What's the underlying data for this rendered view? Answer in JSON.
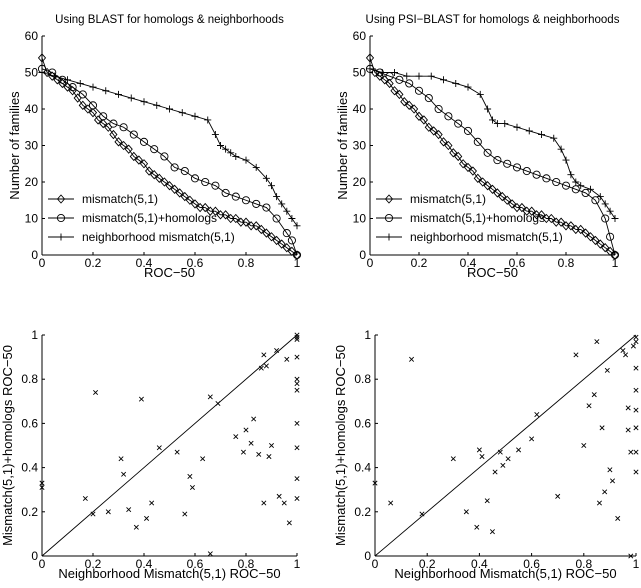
{
  "chart_data": [
    {
      "type": "line",
      "title": "Using BLAST for homologs & neighborhoods",
      "xlabel": "ROC−50",
      "ylabel": "Number of families",
      "xlim": [
        0,
        1
      ],
      "ylim": [
        0,
        60
      ],
      "xticks": [
        "0",
        "0.2",
        "0.4",
        "0.6",
        "0.8",
        "1"
      ],
      "yticks": [
        "0",
        "10",
        "20",
        "30",
        "40",
        "50",
        "60"
      ],
      "legend": "bottom-left",
      "series": [
        {
          "name": "mismatch(5,1)",
          "marker": "diamond",
          "x": [
            0,
            0.02,
            0.04,
            0.06,
            0.08,
            0.1,
            0.12,
            0.14,
            0.16,
            0.18,
            0.2,
            0.22,
            0.24,
            0.26,
            0.28,
            0.3,
            0.32,
            0.34,
            0.36,
            0.38,
            0.4,
            0.42,
            0.44,
            0.46,
            0.48,
            0.5,
            0.52,
            0.54,
            0.56,
            0.58,
            0.6,
            0.62,
            0.64,
            0.66,
            0.68,
            0.7,
            0.72,
            0.74,
            0.76,
            0.78,
            0.8,
            0.82,
            0.84,
            0.86,
            0.88,
            0.9,
            0.92,
            0.94,
            0.96,
            0.98,
            1.0
          ],
          "y": [
            54,
            50,
            49,
            48,
            47,
            46,
            45,
            43,
            41,
            40,
            39,
            37,
            36,
            35,
            33,
            31,
            30,
            29,
            27,
            26,
            25,
            23,
            22,
            21,
            20,
            19,
            18,
            17,
            16,
            15,
            14,
            13,
            13,
            12,
            12,
            11,
            11,
            10,
            10,
            9,
            9,
            8,
            8,
            7,
            6,
            5,
            4,
            3,
            2,
            1,
            0
          ]
        },
        {
          "name": "mismatch(5,1)+homologs",
          "marker": "circle",
          "x": [
            0,
            0.04,
            0.08,
            0.12,
            0.16,
            0.2,
            0.24,
            0.28,
            0.32,
            0.36,
            0.4,
            0.44,
            0.48,
            0.52,
            0.56,
            0.6,
            0.64,
            0.68,
            0.72,
            0.76,
            0.8,
            0.84,
            0.88,
            0.92,
            0.96,
            0.98,
            1.0
          ],
          "y": [
            51,
            50,
            48,
            46,
            44,
            41,
            38,
            36,
            35,
            33,
            31,
            29,
            27,
            24,
            23,
            21,
            20,
            19,
            17,
            16,
            15,
            14,
            13,
            10,
            6,
            4,
            0
          ]
        },
        {
          "name": "neighborhood mismatch(5,1)",
          "marker": "plus",
          "x": [
            0,
            0.05,
            0.1,
            0.15,
            0.2,
            0.25,
            0.3,
            0.35,
            0.4,
            0.45,
            0.5,
            0.55,
            0.6,
            0.65,
            0.68,
            0.7,
            0.72,
            0.74,
            0.76,
            0.8,
            0.84,
            0.88,
            0.9,
            0.92,
            0.94,
            0.96,
            0.98,
            1.0
          ],
          "y": [
            50,
            49,
            48,
            47,
            46,
            45,
            44,
            43,
            42,
            41,
            40,
            39,
            38,
            37,
            33,
            30,
            29,
            28,
            27,
            26,
            24,
            21,
            19,
            16,
            14,
            12,
            10,
            8
          ]
        }
      ]
    },
    {
      "type": "line",
      "title": "Using PSI−BLAST for homologs & neighborhoods",
      "xlabel": "ROC−50",
      "ylabel": "Number of families",
      "xlim": [
        0,
        1
      ],
      "ylim": [
        0,
        60
      ],
      "xticks": [
        "0",
        "0.2",
        "0.4",
        "0.6",
        "0.8",
        "1"
      ],
      "yticks": [
        "0",
        "10",
        "20",
        "30",
        "40",
        "50",
        "60"
      ],
      "legend": "bottom-left",
      "series": [
        {
          "name": "mismatch(5,1)",
          "marker": "diamond",
          "x": [
            0,
            0.02,
            0.04,
            0.06,
            0.08,
            0.1,
            0.12,
            0.14,
            0.16,
            0.18,
            0.2,
            0.22,
            0.24,
            0.26,
            0.28,
            0.3,
            0.32,
            0.34,
            0.36,
            0.38,
            0.4,
            0.42,
            0.44,
            0.46,
            0.48,
            0.5,
            0.52,
            0.54,
            0.56,
            0.58,
            0.6,
            0.62,
            0.64,
            0.66,
            0.68,
            0.7,
            0.72,
            0.74,
            0.76,
            0.78,
            0.8,
            0.82,
            0.84,
            0.86,
            0.88,
            0.9,
            0.92,
            0.94,
            0.96,
            0.98,
            1.0
          ],
          "y": [
            54,
            50,
            49,
            48,
            47,
            45,
            44,
            42,
            41,
            40,
            38,
            37,
            35,
            34,
            33,
            31,
            30,
            28,
            27,
            25,
            24,
            23,
            21,
            20,
            19,
            18,
            17,
            16,
            15,
            14,
            13,
            13,
            12,
            12,
            11,
            11,
            10,
            10,
            9,
            9,
            8,
            8,
            7,
            7,
            6,
            5,
            4,
            3,
            2,
            1,
            0
          ]
        },
        {
          "name": "mismatch(5,1)+homologs",
          "marker": "circle",
          "x": [
            0,
            0.04,
            0.08,
            0.12,
            0.16,
            0.2,
            0.24,
            0.28,
            0.32,
            0.36,
            0.4,
            0.44,
            0.48,
            0.52,
            0.56,
            0.6,
            0.64,
            0.68,
            0.72,
            0.76,
            0.8,
            0.84,
            0.88,
            0.92,
            0.96,
            0.98,
            1.0
          ],
          "y": [
            51,
            50,
            49,
            48,
            47,
            45,
            43,
            40,
            38,
            36,
            34,
            31,
            28,
            26,
            25,
            24,
            23,
            22,
            21,
            20,
            19,
            18,
            17,
            15,
            10,
            5,
            0
          ]
        },
        {
          "name": "neighborhood mismatch(5,1)",
          "marker": "plus",
          "x": [
            0,
            0.05,
            0.1,
            0.15,
            0.2,
            0.25,
            0.3,
            0.35,
            0.4,
            0.45,
            0.48,
            0.5,
            0.52,
            0.55,
            0.6,
            0.65,
            0.7,
            0.75,
            0.78,
            0.8,
            0.82,
            0.84,
            0.86,
            0.9,
            0.94,
            0.96,
            0.98,
            1.0
          ],
          "y": [
            51,
            50,
            50,
            49,
            49,
            49,
            48,
            47,
            46,
            44,
            40,
            37,
            36,
            36,
            35,
            34,
            33,
            32,
            29,
            26,
            22,
            20,
            19,
            18,
            16,
            14,
            12,
            10
          ]
        }
      ]
    },
    {
      "type": "scatter",
      "xlabel": "Neighborhood Mismatch(5,1) ROC−50",
      "ylabel": "Mismatch(5,1)+homologs ROC−50",
      "xlim": [
        0,
        1
      ],
      "ylim": [
        0,
        1
      ],
      "xticks": [
        "0",
        "0.2",
        "0.4",
        "0.6",
        "0.8",
        "1"
      ],
      "yticks": [
        "0",
        "0.2",
        "0.4",
        "0.6",
        "0.8",
        "1"
      ],
      "diagonal": true,
      "points": [
        [
          0,
          0.33
        ],
        [
          0,
          0.31
        ],
        [
          0.17,
          0.26
        ],
        [
          0.2,
          0.19
        ],
        [
          0.21,
          0.74
        ],
        [
          0.26,
          0.2
        ],
        [
          0.31,
          0.44
        ],
        [
          0.32,
          0.37
        ],
        [
          0.34,
          0.21
        ],
        [
          0.37,
          0.13
        ],
        [
          0.39,
          0.71
        ],
        [
          0.41,
          0.17
        ],
        [
          0.43,
          0.24
        ],
        [
          0.46,
          0.49
        ],
        [
          0.53,
          0.47
        ],
        [
          0.56,
          0.19
        ],
        [
          0.58,
          0.36
        ],
        [
          0.59,
          0.31
        ],
        [
          0.63,
          0.44
        ],
        [
          0.66,
          0.72
        ],
        [
          0.66,
          0.01
        ],
        [
          0.69,
          0.69
        ],
        [
          0.76,
          0.54
        ],
        [
          0.79,
          0.47
        ],
        [
          0.8,
          0.57
        ],
        [
          0.82,
          0.51
        ],
        [
          0.83,
          0.62
        ],
        [
          0.85,
          0.46
        ],
        [
          0.86,
          0.85
        ],
        [
          0.87,
          0.24
        ],
        [
          0.87,
          0.91
        ],
        [
          0.88,
          0.86
        ],
        [
          0.89,
          0.45
        ],
        [
          0.9,
          0.5
        ],
        [
          0.92,
          0.93
        ],
        [
          0.93,
          0.27
        ],
        [
          0.95,
          0.24
        ],
        [
          0.96,
          0.89
        ],
        [
          0.97,
          0.15
        ],
        [
          1.0,
          1.0
        ],
        [
          1.0,
          0.99
        ],
        [
          1.0,
          0.98
        ],
        [
          1.0,
          0.9
        ],
        [
          1.0,
          0.8
        ],
        [
          1.0,
          0.78
        ],
        [
          1.0,
          0.75
        ],
        [
          1.0,
          0.6
        ],
        [
          1.0,
          0.49
        ],
        [
          1.0,
          0.35
        ],
        [
          1.0,
          0.26
        ]
      ]
    },
    {
      "type": "scatter",
      "xlabel": "Neighborhood Mismatch(5,1) ROC−50",
      "ylabel": "Mismatch(5,1)+homologs ROC−50",
      "xlim": [
        0,
        1
      ],
      "ylim": [
        0,
        1
      ],
      "xticks": [
        "0",
        "0.2",
        "0.4",
        "0.6",
        "0.8",
        "1"
      ],
      "yticks": [
        "0",
        "0.2",
        "0.4",
        "0.6",
        "0.8",
        "1"
      ],
      "diagonal": true,
      "points": [
        [
          0,
          0.33
        ],
        [
          0.06,
          0.24
        ],
        [
          0.14,
          0.89
        ],
        [
          0.18,
          0.19
        ],
        [
          0.3,
          0.44
        ],
        [
          0.35,
          0.2
        ],
        [
          0.39,
          0.13
        ],
        [
          0.4,
          0.48
        ],
        [
          0.41,
          0.45
        ],
        [
          0.43,
          0.25
        ],
        [
          0.45,
          0.11
        ],
        [
          0.46,
          0.38
        ],
        [
          0.48,
          0.47
        ],
        [
          0.49,
          0.41
        ],
        [
          0.51,
          0.44
        ],
        [
          0.55,
          0.48
        ],
        [
          0.6,
          0.53
        ],
        [
          0.62,
          0.64
        ],
        [
          0.7,
          0.27
        ],
        [
          0.77,
          0.91
        ],
        [
          0.8,
          0.5
        ],
        [
          0.82,
          0.68
        ],
        [
          0.84,
          0.73
        ],
        [
          0.85,
          0.97
        ],
        [
          0.86,
          0.24
        ],
        [
          0.87,
          0.58
        ],
        [
          0.88,
          0.29
        ],
        [
          0.89,
          0.84
        ],
        [
          0.9,
          0.39
        ],
        [
          0.91,
          0.34
        ],
        [
          0.93,
          0.17
        ],
        [
          0.95,
          0.93
        ],
        [
          0.96,
          0.91
        ],
        [
          0.97,
          0.67
        ],
        [
          0.97,
          0.57
        ],
        [
          0.98,
          0.47
        ],
        [
          0.98,
          0.0
        ],
        [
          0.99,
          0.95
        ],
        [
          1.0,
          0.99
        ],
        [
          1.0,
          0.97
        ],
        [
          1.0,
          0.85
        ],
        [
          1.0,
          0.75
        ],
        [
          1.0,
          0.66
        ],
        [
          1.0,
          0.58
        ],
        [
          1.0,
          0.47
        ],
        [
          1.0,
          0.38
        ]
      ]
    }
  ]
}
